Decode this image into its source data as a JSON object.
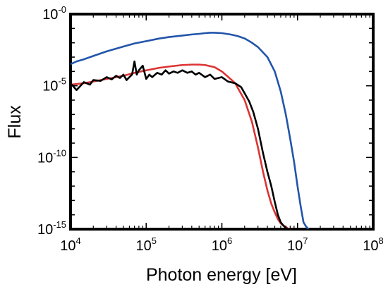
{
  "chart_data": {
    "type": "line",
    "title": "",
    "xlabel": "Photon energy [eV]",
    "ylabel": "Flux",
    "x_scale": "log",
    "y_scale": "log",
    "xlim": [
      10000,
      100000000
    ],
    "ylim": [
      1e-15,
      1
    ],
    "x_ticks": [
      {
        "base": "10",
        "exp": "4",
        "value": 10000
      },
      {
        "base": "10",
        "exp": "5",
        "value": 100000
      },
      {
        "base": "10",
        "exp": "6",
        "value": 1000000
      },
      {
        "base": "10",
        "exp": "7",
        "value": 10000000
      },
      {
        "base": "10",
        "exp": "8",
        "value": 100000000
      }
    ],
    "y_ticks": [
      {
        "base": "10",
        "exp": "-0",
        "value": 1
      },
      {
        "base": "10",
        "exp": "-5",
        "value": 1e-05
      },
      {
        "base": "10",
        "exp": "-10",
        "value": 1e-10
      },
      {
        "base": "10",
        "exp": "-15",
        "value": 1e-15
      }
    ],
    "grid": false,
    "legend": "none",
    "series": [
      {
        "color": "#2255aa",
        "x": [
          10000,
          12000,
          15000,
          20000,
          30000,
          50000,
          70000,
          100000,
          150000,
          200000,
          300000,
          400000,
          500000,
          600000,
          700000,
          800000,
          1000000,
          1300000,
          1600000,
          2000000,
          2500000,
          3000000,
          4000000,
          5000000,
          6000000,
          7000000,
          8000000,
          9000000,
          10000000,
          11000000,
          12000000,
          13000000,
          14000000
        ],
        "y": [
          0.00032,
          0.0005,
          0.0007,
          0.0012,
          0.0025,
          0.0055,
          0.009,
          0.013,
          0.02,
          0.025,
          0.032,
          0.038,
          0.042,
          0.047,
          0.05,
          0.05,
          0.047,
          0.038,
          0.03,
          0.02,
          0.01,
          0.005,
          0.001,
          0.0001,
          4e-06,
          1e-07,
          2e-09,
          5e-11,
          1e-12,
          4e-14,
          3e-15,
          1.5e-15,
          1e-15
        ]
      },
      {
        "color": "#dd3333",
        "x": [
          10000,
          15000,
          20000,
          30000,
          50000,
          70000,
          100000,
          150000,
          200000,
          300000,
          400000,
          500000,
          600000,
          800000,
          1000000,
          1300000,
          1500000,
          2000000,
          2500000,
          3000000,
          3500000,
          4000000,
          4500000,
          5000000,
          5500000,
          6000000,
          6500000,
          7000000,
          7500000,
          8000000
        ],
        "y": [
          1.2e-05,
          1.5e-05,
          2e-05,
          3e-05,
          5e-05,
          8e-05,
          0.00012,
          0.00018,
          0.00022,
          0.00028,
          0.0003,
          0.0003,
          0.00028,
          0.0002,
          0.0001,
          3e-05,
          1.5e-05,
          1e-06,
          3e-08,
          5e-10,
          1e-11,
          5e-13,
          6e-14,
          1.5e-14,
          5e-15,
          2.5e-15,
          1.8e-15,
          1.4e-15,
          1.1e-15,
          1e-15
        ]
      },
      {
        "color": "#000000",
        "x": [
          10000,
          12000,
          15000,
          18000,
          20000,
          25000,
          30000,
          35000,
          40000,
          45000,
          50000,
          55000,
          60000,
          65000,
          70000,
          75000,
          80000,
          90000,
          100000,
          110000,
          120000,
          140000,
          160000,
          180000,
          200000,
          230000,
          260000,
          300000,
          350000,
          400000,
          450000,
          500000,
          600000,
          700000,
          800000,
          1000000,
          1200000,
          1500000,
          1800000,
          2000000,
          2300000,
          2600000,
          3000000,
          3500000,
          4000000,
          4500000,
          5000000,
          5500000,
          6000000,
          6500000,
          7000000,
          7500000,
          8000000
        ],
        "y": [
          1.5e-05,
          5e-06,
          1.8e-05,
          1.2e-05,
          2.5e-05,
          2.2e-05,
          4e-05,
          2.8e-05,
          5e-05,
          3.5e-05,
          6e-05,
          2.5e-05,
          4e-05,
          6e-05,
          0.0005,
          6e-05,
          0.00012,
          0.00025,
          3e-05,
          6e-05,
          4e-05,
          8e-05,
          6e-05,
          0.00012,
          7e-05,
          0.0001,
          8e-05,
          0.00012,
          8e-05,
          0.0001,
          6e-05,
          8e-05,
          4e-05,
          6e-05,
          3e-05,
          4e-05,
          2e-05,
          1.5e-05,
          8e-06,
          3e-06,
          8e-07,
          1.5e-07,
          1e-08,
          2e-10,
          1e-11,
          1e-12,
          8e-14,
          1e-14,
          3e-15,
          1.8e-15,
          1.2e-15,
          1e-15,
          1e-15
        ]
      }
    ]
  }
}
